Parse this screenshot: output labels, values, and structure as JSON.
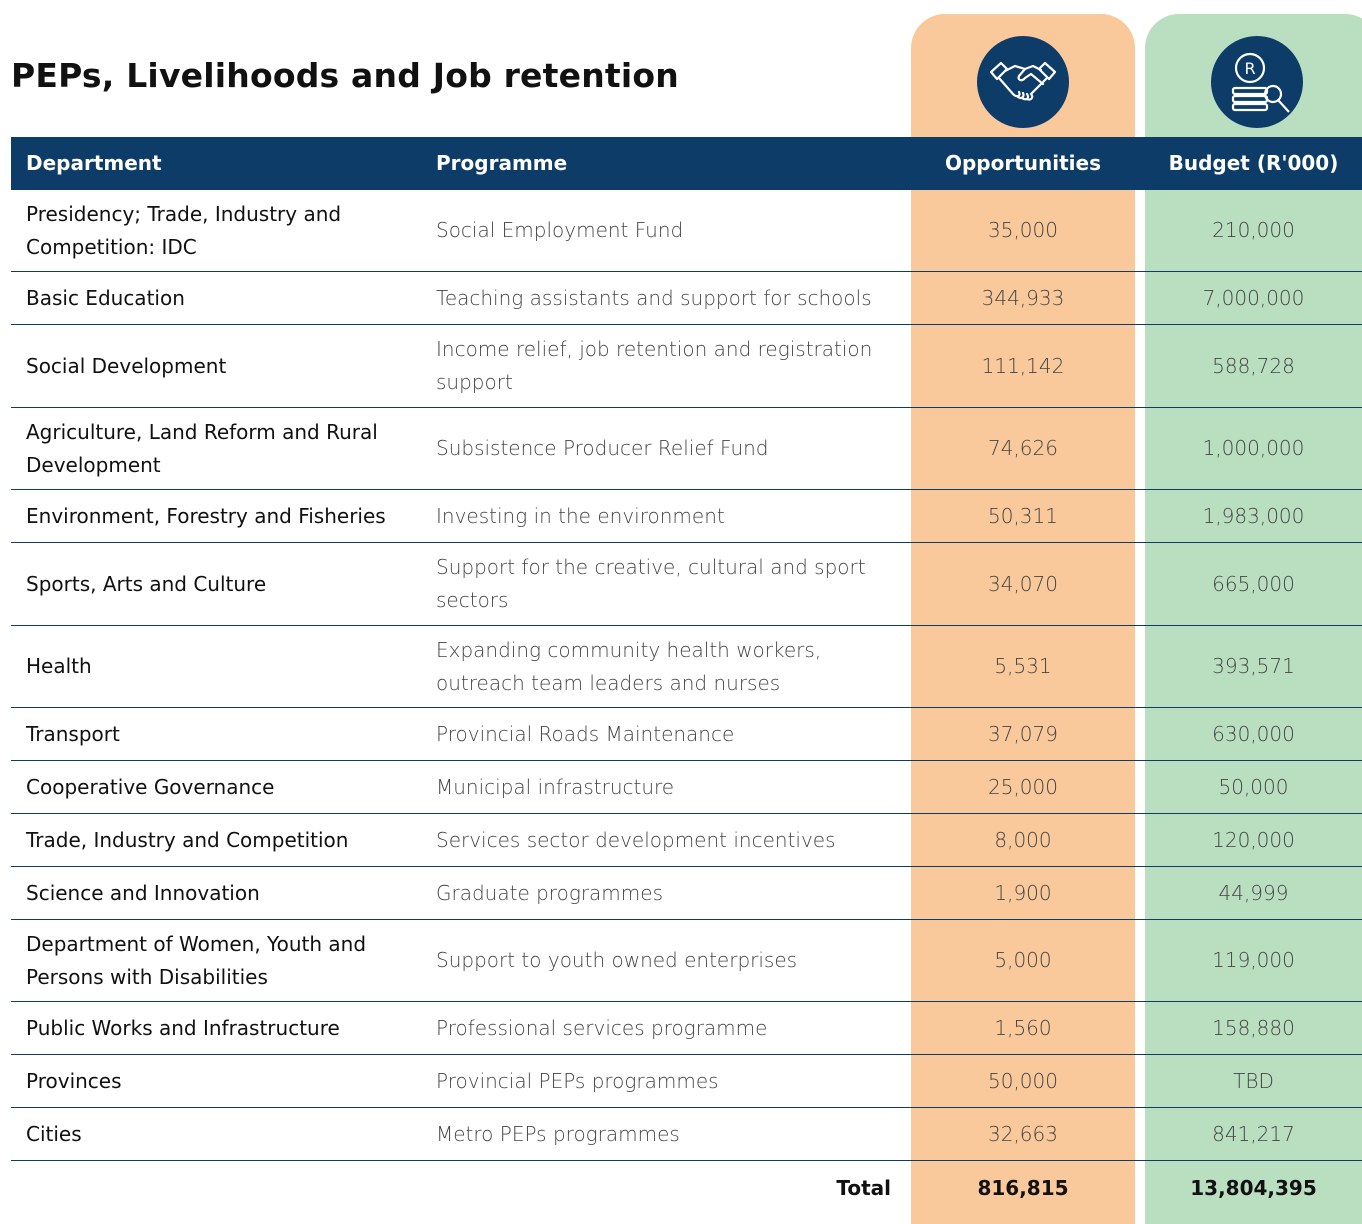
{
  "header": {
    "title": "PEPs, Livelihoods and Job retention"
  },
  "icons": {
    "budget_label": "R"
  },
  "table": {
    "columns": [
      "Department",
      "Programme",
      "Opportunities",
      "Budget (R'000)"
    ],
    "rows": [
      [
        "Presidency; Trade, Industry and Competition: IDC",
        "Social Employment Fund",
        "35,000",
        "210,000"
      ],
      [
        "Basic Education",
        "Teaching assistants and support for schools",
        "344,933",
        "7,000,000"
      ],
      [
        "Social Development",
        "Income relief, job retention and registration support",
        "111,142",
        "588,728"
      ],
      [
        "Agriculture, Land Reform and Rural Development",
        "Subsistence Producer Relief Fund",
        "74,626",
        "1,000,000"
      ],
      [
        "Environment, Forestry and Fisheries",
        "Investing in the environment",
        "50,311",
        "1,983,000"
      ],
      [
        "Sports, Arts and Culture",
        "Support for the creative, cultural and sport sectors",
        "34,070",
        "665,000"
      ],
      [
        "Health",
        "Expanding community health workers, outreach team leaders and nurses",
        "5,531",
        "393,571"
      ],
      [
        "Transport",
        "Provincial Roads Maintenance",
        "37,079",
        "630,000"
      ],
      [
        "Cooperative Governance",
        "Municipal infrastructure",
        "25,000",
        "50,000"
      ],
      [
        "Trade, Industry and Competition",
        "Services sector development incentives",
        "8,000",
        "120,000"
      ],
      [
        "Science and Innovation",
        "Graduate programmes",
        "1,900",
        "44,999"
      ],
      [
        "Department of Women, Youth and Persons with Disabilities",
        "Support to youth owned enterprises",
        "5,000",
        "119,000"
      ],
      [
        "Public Works and Infrastructure",
        "Professional services programme",
        "1,560",
        "158,880"
      ],
      [
        "Provinces",
        "Provincial PEPs programmes",
        "50,000",
        "TBD"
      ],
      [
        "Cities",
        "Metro PEPs programmes",
        "32,663",
        "841,217"
      ]
    ],
    "total": {
      "label": "Total",
      "opportunities": "816,815",
      "budget": "13,804,395"
    }
  }
}
